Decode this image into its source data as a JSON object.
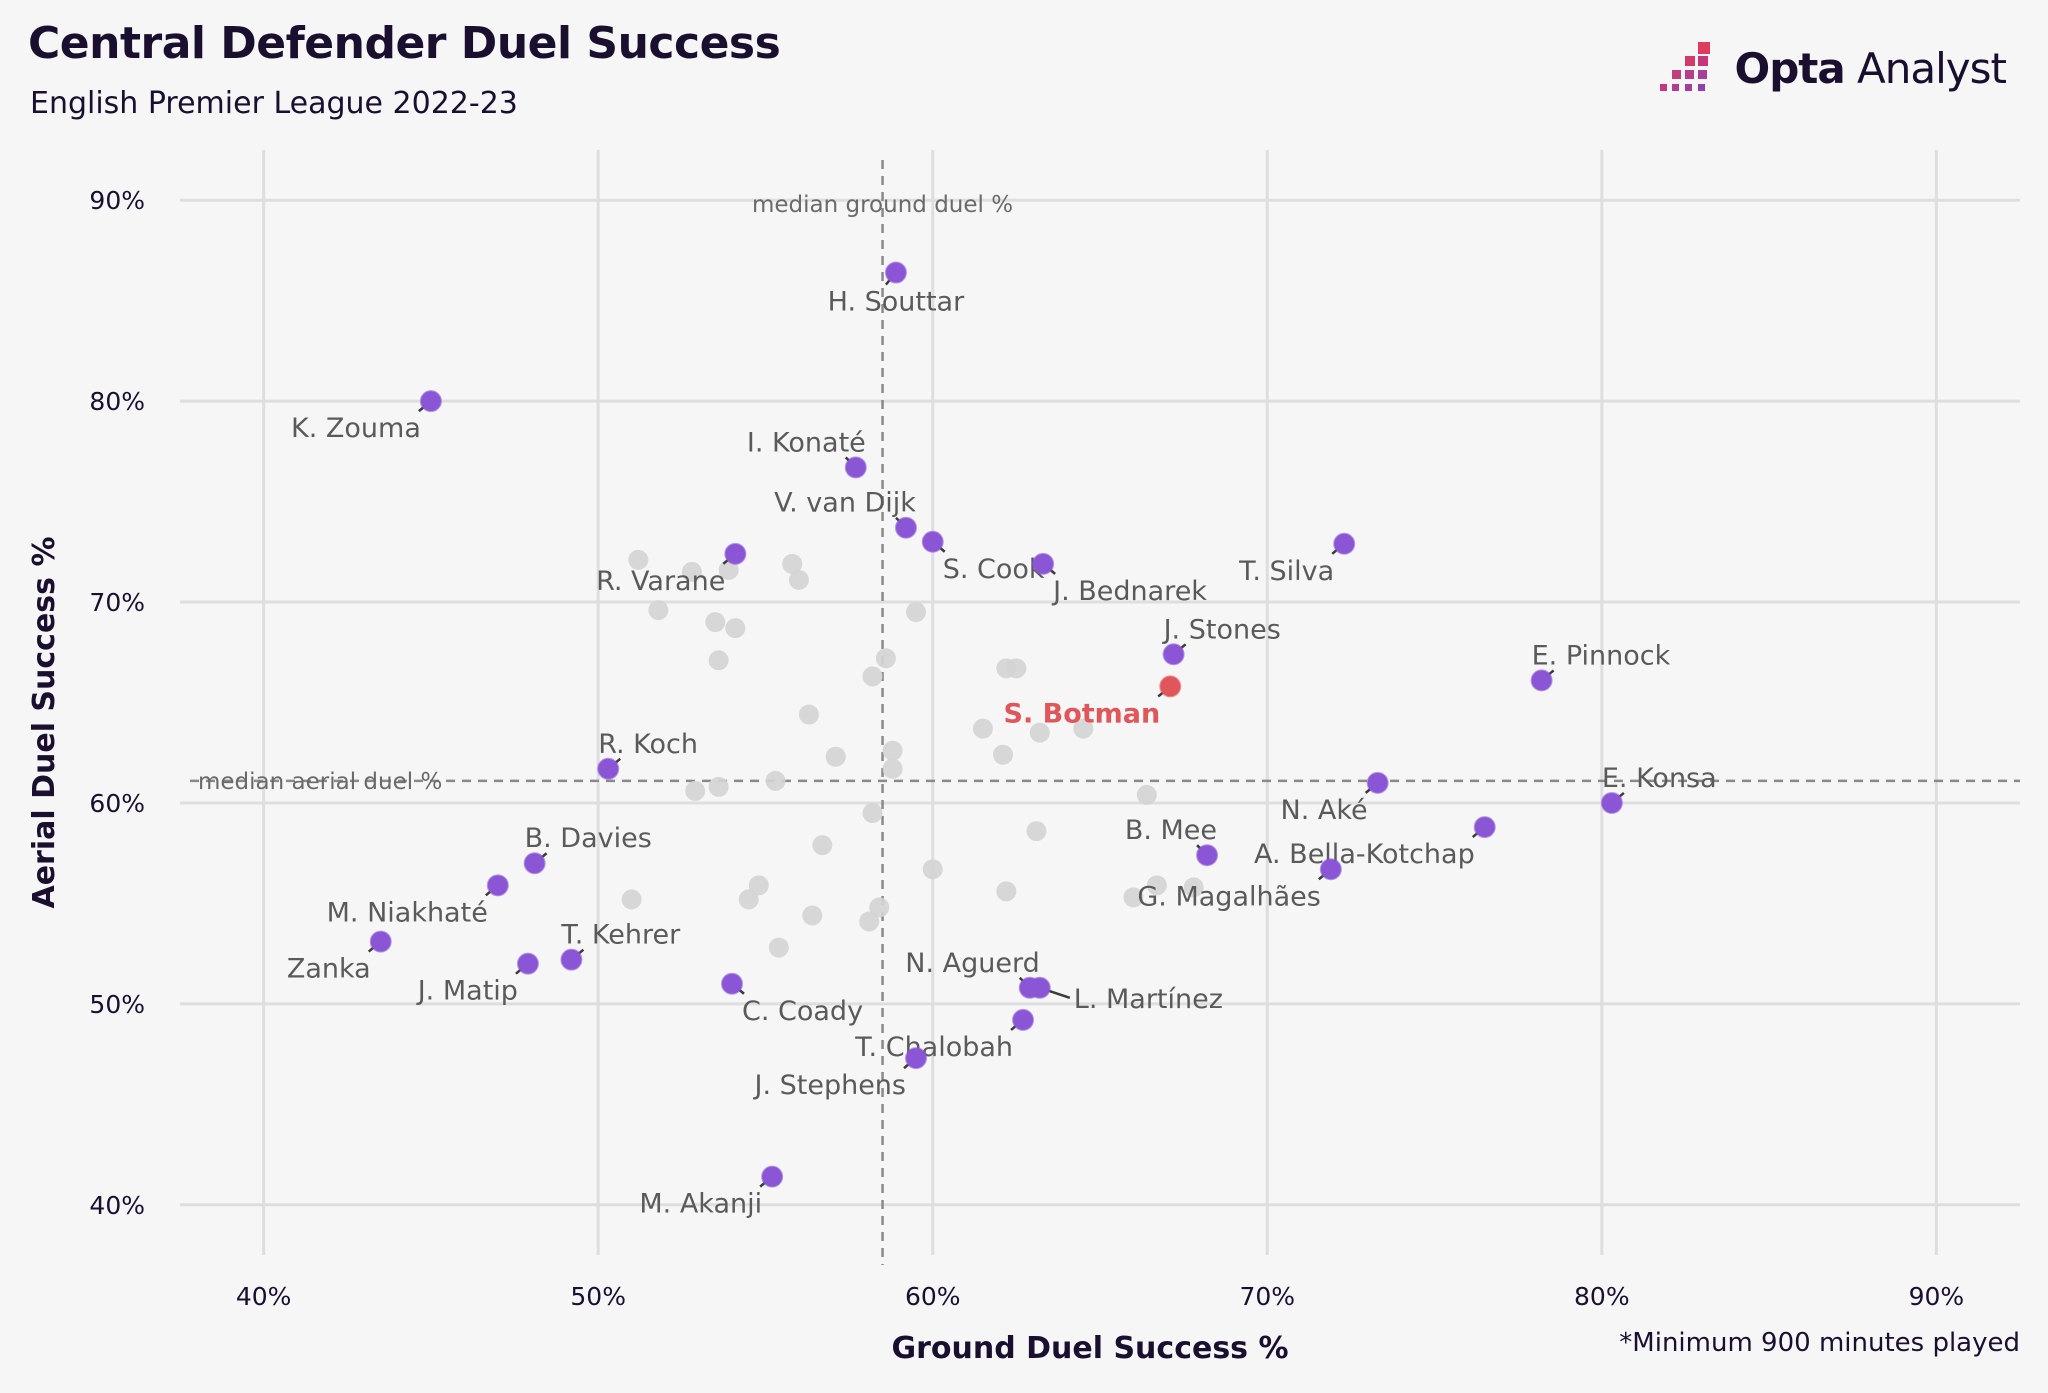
{
  "header": {
    "title": "Central Defender Duel Success",
    "subtitle": "English Premier League 2022-23"
  },
  "brand": {
    "logo_bold": "Opta",
    "logo_light": "Analyst",
    "icon": "opta-bars-icon"
  },
  "footnote": "*Minimum 900 minutes played",
  "colors": {
    "background": "#f6f6f6",
    "highlight": "#8a56d6",
    "botman": "#e0565b",
    "other": "#d4d4d4",
    "text": "#1a0f2e",
    "label": "#5a5a5a"
  },
  "chart_data": {
    "type": "scatter",
    "xlabel": "Ground Duel Success %",
    "ylabel": "Aerial Duel Success %",
    "xlim": [
      37.5,
      92.5
    ],
    "ylim": [
      37.5,
      92.5
    ],
    "x_ticks": [
      40,
      50,
      60,
      70,
      80,
      90
    ],
    "y_ticks": [
      40,
      50,
      60,
      70,
      80,
      90
    ],
    "x_tick_labels": [
      "40%",
      "50%",
      "60%",
      "70%",
      "80%",
      "90%"
    ],
    "y_tick_labels": [
      "40%",
      "50%",
      "60%",
      "70%",
      "80%",
      "90%"
    ],
    "grid": true,
    "reference_lines": [
      {
        "axis": "x",
        "value": 58.5,
        "label": "median ground duel %"
      },
      {
        "axis": "y",
        "value": 61.1,
        "label": "median aerial duel %"
      }
    ],
    "highlighted_players": [
      {
        "name": "H. Souttar",
        "x": 58.9,
        "y": 86.4,
        "label_side": "below"
      },
      {
        "name": "K. Zouma",
        "x": 45.0,
        "y": 80.0,
        "label_side": "below-left"
      },
      {
        "name": "I. Konaté",
        "x": 57.7,
        "y": 76.7,
        "label_side": "above-left"
      },
      {
        "name": "V. van Dijk",
        "x": 59.2,
        "y": 73.7,
        "label_side": "above-left"
      },
      {
        "name": "S. Cook",
        "x": 60.0,
        "y": 73.0,
        "label_side": "below-right"
      },
      {
        "name": "R. Varane",
        "x": 54.1,
        "y": 72.4,
        "label_side": "below-left"
      },
      {
        "name": "J. Bednarek",
        "x": 63.3,
        "y": 71.9,
        "label_side": "below-right"
      },
      {
        "name": "T. Silva",
        "x": 72.3,
        "y": 72.9,
        "label_side": "below-left"
      },
      {
        "name": "J. Stones",
        "x": 67.2,
        "y": 67.4,
        "label_side": "above-right"
      },
      {
        "name": "E. Pinnock",
        "x": 78.2,
        "y": 66.1,
        "label_side": "above-right"
      },
      {
        "name": "R. Koch",
        "x": 50.3,
        "y": 61.7,
        "label_side": "above-right"
      },
      {
        "name": "N. Aké",
        "x": 73.3,
        "y": 61.0,
        "label_side": "below-left"
      },
      {
        "name": "E. Konsa",
        "x": 80.3,
        "y": 60.0,
        "label_side": "above-right"
      },
      {
        "name": "A. Bella-Kotchap",
        "x": 76.5,
        "y": 58.8,
        "label_side": "below-left"
      },
      {
        "name": "B. Mee",
        "x": 68.2,
        "y": 57.4,
        "label_side": "above-left"
      },
      {
        "name": "G. Magalhães",
        "x": 71.9,
        "y": 56.7,
        "label_side": "below-left"
      },
      {
        "name": "B. Davies",
        "x": 48.1,
        "y": 57.0,
        "label_side": "above-right"
      },
      {
        "name": "M. Niakhaté",
        "x": 47.0,
        "y": 55.9,
        "label_side": "below-left"
      },
      {
        "name": "Zanka",
        "x": 43.5,
        "y": 53.1,
        "label_side": "below-left"
      },
      {
        "name": "J. Matip",
        "x": 47.9,
        "y": 52.0,
        "label_side": "below-left"
      },
      {
        "name": "T. Kehrer",
        "x": 49.2,
        "y": 52.2,
        "label_side": "above-right"
      },
      {
        "name": "C. Coady",
        "x": 54.0,
        "y": 51.0,
        "label_side": "below-right"
      },
      {
        "name": "N. Aguerd",
        "x": 62.9,
        "y": 50.8,
        "label_side": "above-left"
      },
      {
        "name": "L. Martínez",
        "x": 63.2,
        "y": 50.8,
        "label_side": "right"
      },
      {
        "name": "T. Chalobah",
        "x": 62.7,
        "y": 49.2,
        "label_side": "below-left"
      },
      {
        "name": "J. Stephens",
        "x": 59.5,
        "y": 47.3,
        "label_side": "below-left"
      },
      {
        "name": "M. Akanji",
        "x": 55.2,
        "y": 41.4,
        "label_side": "below-left"
      }
    ],
    "featured_player": {
      "name": "S. Botman",
      "x": 67.1,
      "y": 65.8,
      "label_side": "below-left"
    },
    "other_players": [
      {
        "x": 51.2,
        "y": 72.1
      },
      {
        "x": 52.8,
        "y": 71.5
      },
      {
        "x": 53.9,
        "y": 71.6
      },
      {
        "x": 55.8,
        "y": 71.9
      },
      {
        "x": 56.0,
        "y": 71.1
      },
      {
        "x": 51.8,
        "y": 69.6
      },
      {
        "x": 53.5,
        "y": 69.0
      },
      {
        "x": 54.1,
        "y": 68.7
      },
      {
        "x": 59.5,
        "y": 69.5
      },
      {
        "x": 53.6,
        "y": 67.1
      },
      {
        "x": 58.2,
        "y": 66.3
      },
      {
        "x": 58.6,
        "y": 67.2
      },
      {
        "x": 62.2,
        "y": 66.7
      },
      {
        "x": 62.5,
        "y": 66.7
      },
      {
        "x": 56.3,
        "y": 64.4
      },
      {
        "x": 61.5,
        "y": 63.7
      },
      {
        "x": 63.2,
        "y": 63.5
      },
      {
        "x": 64.5,
        "y": 63.7
      },
      {
        "x": 57.1,
        "y": 62.3
      },
      {
        "x": 58.8,
        "y": 62.6
      },
      {
        "x": 62.1,
        "y": 62.4
      },
      {
        "x": 58.8,
        "y": 61.7
      },
      {
        "x": 53.6,
        "y": 60.8
      },
      {
        "x": 55.3,
        "y": 61.1
      },
      {
        "x": 52.9,
        "y": 60.6
      },
      {
        "x": 66.4,
        "y": 60.4
      },
      {
        "x": 58.2,
        "y": 59.5
      },
      {
        "x": 63.1,
        "y": 58.6
      },
      {
        "x": 56.7,
        "y": 57.9
      },
      {
        "x": 60.0,
        "y": 56.7
      },
      {
        "x": 62.2,
        "y": 55.6
      },
      {
        "x": 54.8,
        "y": 55.9
      },
      {
        "x": 54.5,
        "y": 55.2
      },
      {
        "x": 51.0,
        "y": 55.2
      },
      {
        "x": 66.0,
        "y": 55.3
      },
      {
        "x": 66.7,
        "y": 55.9
      },
      {
        "x": 67.8,
        "y": 55.8
      },
      {
        "x": 58.4,
        "y": 54.8
      },
      {
        "x": 56.4,
        "y": 54.4
      },
      {
        "x": 58.1,
        "y": 54.1
      },
      {
        "x": 55.4,
        "y": 52.8
      }
    ]
  }
}
